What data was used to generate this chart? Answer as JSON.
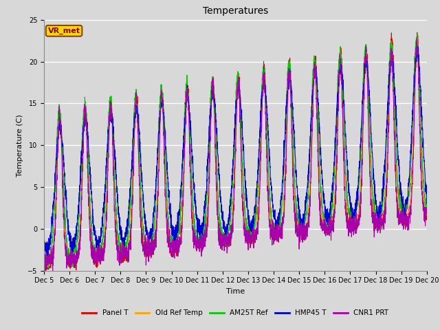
{
  "title": "Temperatures",
  "xlabel": "Time",
  "ylabel": "Temperature (C)",
  "ylim": [
    -5,
    25
  ],
  "xlim": [
    0,
    15
  ],
  "x_tick_labels": [
    "Dec 5",
    "Dec 6",
    "Dec 7",
    "Dec 8",
    "Dec 9",
    "Dec 10",
    "Dec 11",
    "Dec 12",
    "Dec 13",
    "Dec 14",
    "Dec 15",
    "Dec 16",
    "Dec 17",
    "Dec 18",
    "Dec 19",
    "Dec 20"
  ],
  "annotation_text": "VR_met",
  "annotation_color": "#8B0000",
  "annotation_bgcolor": "#FFD700",
  "annotation_edgecolor": "#8B4513",
  "background_color": "#D8D8D8",
  "series": {
    "Panel T": {
      "color": "#DD0000",
      "lw": 0.8
    },
    "Old Ref Temp": {
      "color": "#FFA500",
      "lw": 0.8
    },
    "AM25T Ref": {
      "color": "#00CC00",
      "lw": 0.8
    },
    "HMP45 T": {
      "color": "#0000DD",
      "lw": 0.8
    },
    "CNR1 PRT": {
      "color": "#AA00AA",
      "lw": 0.8
    }
  },
  "legend_ncol": 5,
  "title_fontsize": 10,
  "tick_fontsize": 7,
  "ylabel_fontsize": 8
}
